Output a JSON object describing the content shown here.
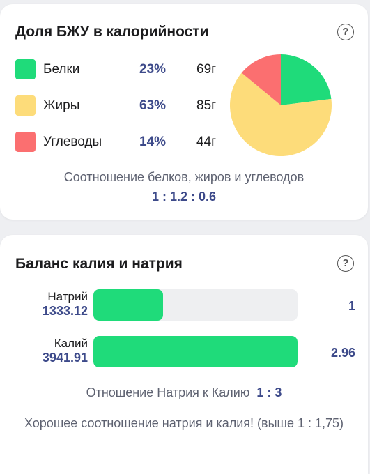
{
  "colors": {
    "protein": "#1fdb7a",
    "fat": "#fddc7a",
    "carbs": "#fb6f70",
    "accent_text": "#3d4a8a",
    "bar_fill": "#1fdb7a",
    "bar_track": "#eeeff1"
  },
  "macro_card": {
    "title": "Доля БЖУ в калорийности",
    "help_icon": "question-circle-icon",
    "help_glyph": "?",
    "items": [
      {
        "name": "Белки",
        "percent": "23%",
        "grams": "69г"
      },
      {
        "name": "Жиры",
        "percent": "63%",
        "grams": "85г"
      },
      {
        "name": "Углеводы",
        "percent": "14%",
        "grams": "44г"
      }
    ],
    "ratio_caption": "Соотношение белков, жиров и углеводов",
    "ratio_value": "1 : 1.2 : 0.6"
  },
  "chart_data": {
    "type": "pie",
    "categories": [
      "Белки",
      "Жиры",
      "Углеводы"
    ],
    "values": [
      23,
      63,
      14
    ],
    "colors": [
      "#1fdb7a",
      "#fddc7a",
      "#fb6f70"
    ],
    "start_angle_deg": 0,
    "direction": "clockwise"
  },
  "kna_card": {
    "title": "Баланс калия и натрия",
    "help_icon": "question-circle-icon",
    "help_glyph": "?",
    "bars": [
      {
        "name": "Натрий",
        "value": "1333.12",
        "ratio": "1",
        "fill_fraction": 0.34
      },
      {
        "name": "Калий",
        "value": "3941.91",
        "ratio": "2.96",
        "fill_fraction": 1.0
      }
    ],
    "ratio_caption": "Отношение Натрия к Калию",
    "ratio_value": "1 : 3",
    "note": "Хорошее соотношение натрия и калия! (выше 1 : 1,75)"
  }
}
